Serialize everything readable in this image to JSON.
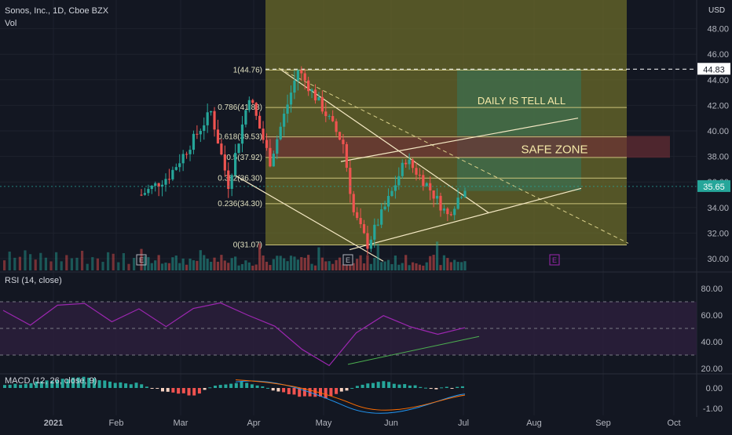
{
  "header": {
    "symbol_line": "Sonos, Inc., 1D, Cboe BZX",
    "volume_label": "Vol",
    "rsi_label": "RSI (14, close)",
    "macd_label": "MACD (12, 26, close, 9)",
    "currency": "USD"
  },
  "colors": {
    "background": "#131722",
    "up": "#26a69a",
    "down": "#ef5350",
    "fib_fill": "#6b6b2a",
    "fib_line": "#c9c27a",
    "rsi_line": "#9c27b0",
    "rsi_band": "#2a1e3a",
    "target_box": "#3f6b4a",
    "safe_zone": "#6e2e36",
    "trend_line": "#f5e9c4",
    "macd_line": "#2196f3",
    "signal_line": "#ff6d00",
    "rsi_trend": "#4caf50"
  },
  "annotations": {
    "daily_note": "DAILY IS TELL ALL",
    "safe_zone": "SAFE ZONE",
    "last_price": "35.65",
    "dashed_level": "44.83",
    "earnings_marker": "E"
  },
  "chart_data": [
    {
      "type": "candlestick",
      "title": "Sonos, Inc., 1D, Cboe BZX",
      "ylabel": "USD",
      "ylim": [
        30,
        48
      ],
      "y_ticks": [
        "48.00",
        "46.00",
        "44.00",
        "42.00",
        "40.00",
        "38.00",
        "36.00",
        "34.00",
        "32.00",
        "30.00"
      ],
      "x_ticks": [
        "2021",
        "Feb",
        "Mar",
        "Apr",
        "May",
        "Jun",
        "Jul",
        "Aug",
        "Sep",
        "Oct"
      ],
      "last_price": 35.65,
      "fib_levels": [
        {
          "label": "1(44.76)",
          "ratio": 1,
          "price": 44.76
        },
        {
          "label": "0.786(41.83)",
          "ratio": 0.786,
          "price": 41.83
        },
        {
          "label": "0.618(39.53)",
          "ratio": 0.618,
          "price": 39.53
        },
        {
          "label": "0.5(37.92)",
          "ratio": 0.5,
          "price": 37.92
        },
        {
          "label": "0.382(36.30)",
          "ratio": 0.382,
          "price": 36.3
        },
        {
          "label": "0.236(34.30)",
          "ratio": 0.236,
          "price": 34.3
        },
        {
          "label": "0(31.07)",
          "ratio": 0,
          "price": 31.07
        }
      ],
      "closes": [
        {
          "date": "2021-01-20",
          "close": 35.0
        },
        {
          "date": "2021-02-03",
          "close": 36.5
        },
        {
          "date": "2021-02-12",
          "close": 38.5
        },
        {
          "date": "2021-02-24",
          "close": 41.5
        },
        {
          "date": "2021-03-04",
          "close": 35.8
        },
        {
          "date": "2021-03-15",
          "close": 42.8
        },
        {
          "date": "2021-03-24",
          "close": 37.6
        },
        {
          "date": "2021-04-01",
          "close": 41.2
        },
        {
          "date": "2021-04-08",
          "close": 44.8
        },
        {
          "date": "2021-04-20",
          "close": 41.8
        },
        {
          "date": "2021-04-30",
          "close": 39.0
        },
        {
          "date": "2021-05-06",
          "close": 33.6
        },
        {
          "date": "2021-05-12",
          "close": 31.1
        },
        {
          "date": "2021-05-24",
          "close": 35.2
        },
        {
          "date": "2021-05-31",
          "close": 37.8
        },
        {
          "date": "2021-06-10",
          "close": 35.8
        },
        {
          "date": "2021-06-21",
          "close": 33.4
        },
        {
          "date": "2021-06-30",
          "close": 35.65
        }
      ]
    },
    {
      "type": "line",
      "title": "RSI (14, close)",
      "ylim": [
        20,
        80
      ],
      "y_ticks": [
        "80.00",
        "60.00",
        "40.00",
        "20.00"
      ],
      "band": [
        30,
        70
      ],
      "series": [
        {
          "name": "RSI",
          "values": [
            62,
            55,
            68,
            70,
            58,
            65,
            50,
            66,
            72,
            60,
            52,
            34,
            25,
            45,
            60,
            50,
            44,
            53
          ]
        }
      ]
    },
    {
      "type": "bar",
      "title": "MACD (12, 26, close, 9)",
      "ylim": [
        -1,
        1
      ],
      "y_ticks": [
        "0.00",
        "-1.00"
      ],
      "series": [
        {
          "name": "Histogram",
          "values": [
            0.1,
            0.25,
            0.4,
            0.55,
            0.3,
            0.2,
            -0.2,
            -0.35,
            0.2,
            0.3,
            -0.1,
            -0.4,
            -0.5,
            0.1,
            0.3,
            0.15,
            -0.05,
            0.1
          ]
        }
      ]
    }
  ]
}
